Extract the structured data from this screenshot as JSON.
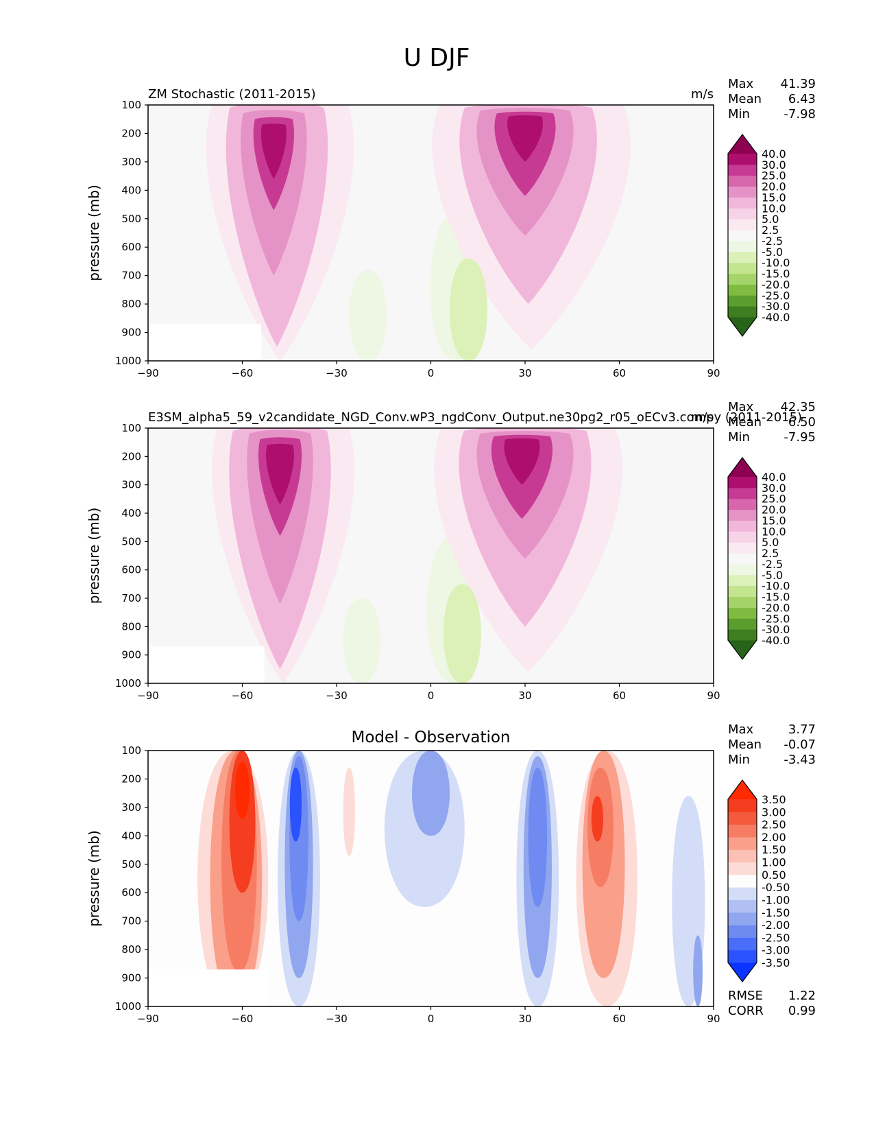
{
  "suptitle": "U DJF",
  "chart_data": [
    {
      "type": "contour",
      "title_left": "ZM Stochastic (2011-2015)",
      "title_right": "m/s",
      "title_center": "",
      "ylabel": "pressure (mb)",
      "xlabel": "",
      "xlim": [
        -90,
        90
      ],
      "ylim": [
        1000,
        100
      ],
      "xticks": [
        "−90",
        "−60",
        "−30",
        "0",
        "30",
        "60",
        "90"
      ],
      "yticks": [
        "100",
        "200",
        "300",
        "400",
        "500",
        "600",
        "700",
        "800",
        "900",
        "1000"
      ],
      "stats": [
        {
          "label": "Max",
          "value": "41.39"
        },
        {
          "label": "Mean",
          "value": "6.43"
        },
        {
          "label": "Min",
          "value": "-7.98"
        }
      ],
      "extra_stats": [],
      "colorbar": {
        "levels": [
          "-40.0",
          "-30.0",
          "-25.0",
          "-20.0",
          "-15.0",
          "-10.0",
          "-5.0",
          "-2.5",
          "2.5",
          "5.0",
          "10.0",
          "15.0",
          "20.0",
          "25.0",
          "30.0",
          "40.0"
        ],
        "colors": [
          "#276419",
          "#3e7d20",
          "#5a9e2f",
          "#7fbc41",
          "#a5d46b",
          "#c3e58e",
          "#dbf1b8",
          "#eef7e3",
          "#f7f7f7",
          "#fbe9f2",
          "#f7d3e7",
          "#f1b7da",
          "#e593c6",
          "#d866ad",
          "#c73a93",
          "#ae0f6f",
          "#8e0152"
        ]
      },
      "features": [
        {
          "shape": "jet",
          "level": 0.18,
          "lon": -48,
          "lat_width": 58,
          "top": 100,
          "bottom": 1000
        },
        {
          "shape": "jet",
          "level": 0.36,
          "lon": -49,
          "lat_width": 40,
          "top": 110,
          "bottom": 950
        },
        {
          "shape": "jet",
          "level": 0.52,
          "lon": -50,
          "lat_width": 26,
          "top": 130,
          "bottom": 700
        },
        {
          "shape": "jet",
          "level": 0.7,
          "lon": -50,
          "lat_width": 16,
          "top": 150,
          "bottom": 470
        },
        {
          "shape": "jet",
          "level": 0.86,
          "lon": -50,
          "lat_width": 10,
          "top": 170,
          "bottom": 360
        },
        {
          "shape": "jet",
          "level": 0.18,
          "lon": 32,
          "lat_width": 78,
          "top": 100,
          "bottom": 960
        },
        {
          "shape": "jet",
          "level": 0.36,
          "lon": 31,
          "lat_width": 54,
          "top": 110,
          "bottom": 800
        },
        {
          "shape": "jet",
          "level": 0.52,
          "lon": 30,
          "lat_width": 38,
          "top": 120,
          "bottom": 560
        },
        {
          "shape": "jet",
          "level": 0.7,
          "lon": 30,
          "lat_width": 24,
          "top": 130,
          "bottom": 420
        },
        {
          "shape": "jet",
          "level": 0.86,
          "lon": 30,
          "lat_width": 14,
          "top": 140,
          "bottom": 300
        },
        {
          "shape": "blob",
          "level": -0.14,
          "lon": -20,
          "lat_width": 16,
          "top": 680,
          "bottom": 1000
        },
        {
          "shape": "blob",
          "level": -0.14,
          "lon": 8,
          "lat_width": 22,
          "top": 480,
          "bottom": 1000
        },
        {
          "shape": "blob",
          "level": -0.28,
          "lon": 12,
          "lat_width": 16,
          "top": 640,
          "bottom": 1000
        }
      ],
      "mask": [
        {
          "lon0": -90,
          "lon1": -54,
          "p0": 870,
          "p1": 1000
        }
      ]
    },
    {
      "type": "contour",
      "title_left": "E3SM_alpha5_59_v2candidate_NGD_Conv.wP3_ngdConv_Output.ne30pg2_r05_oECv3.compy (2011-2015)",
      "title_right": "m/s",
      "title_center": "",
      "ylabel": "pressure (mb)",
      "xlabel": "",
      "xlim": [
        -90,
        90
      ],
      "ylim": [
        1000,
        100
      ],
      "xticks": [
        "−90",
        "−60",
        "−30",
        "0",
        "30",
        "60",
        "90"
      ],
      "yticks": [
        "100",
        "200",
        "300",
        "400",
        "500",
        "600",
        "700",
        "800",
        "900",
        "1000"
      ],
      "stats": [
        {
          "label": "Max",
          "value": "42.35"
        },
        {
          "label": "Mean",
          "value": "6.50"
        },
        {
          "label": "Min",
          "value": "-7.95"
        }
      ],
      "extra_stats": [],
      "colorbar": {
        "levels": [
          "-40.0",
          "-30.0",
          "-25.0",
          "-20.0",
          "-15.0",
          "-10.0",
          "-5.0",
          "-2.5",
          "2.5",
          "5.0",
          "10.0",
          "15.0",
          "20.0",
          "25.0",
          "30.0",
          "40.0"
        ],
        "colors": [
          "#276419",
          "#3e7d20",
          "#5a9e2f",
          "#7fbc41",
          "#a5d46b",
          "#c3e58e",
          "#dbf1b8",
          "#eef7e3",
          "#f7f7f7",
          "#fbe9f2",
          "#f7d3e7",
          "#f1b7da",
          "#e593c6",
          "#d866ad",
          "#c73a93",
          "#ae0f6f",
          "#8e0152"
        ]
      },
      "features": [
        {
          "shape": "jet",
          "level": 0.18,
          "lon": -47,
          "lat_width": 56,
          "top": 100,
          "bottom": 1000
        },
        {
          "shape": "jet",
          "level": 0.36,
          "lon": -48,
          "lat_width": 40,
          "top": 110,
          "bottom": 950
        },
        {
          "shape": "jet",
          "level": 0.52,
          "lon": -48,
          "lat_width": 26,
          "top": 120,
          "bottom": 720
        },
        {
          "shape": "jet",
          "level": 0.7,
          "lon": -48,
          "lat_width": 17,
          "top": 140,
          "bottom": 480
        },
        {
          "shape": "jet",
          "level": 0.86,
          "lon": -48,
          "lat_width": 11,
          "top": 160,
          "bottom": 370
        },
        {
          "shape": "jet",
          "level": 0.18,
          "lon": 31,
          "lat_width": 74,
          "top": 100,
          "bottom": 960
        },
        {
          "shape": "jet",
          "level": 0.36,
          "lon": 30,
          "lat_width": 52,
          "top": 110,
          "bottom": 800
        },
        {
          "shape": "jet",
          "level": 0.52,
          "lon": 30,
          "lat_width": 38,
          "top": 120,
          "bottom": 560
        },
        {
          "shape": "jet",
          "level": 0.7,
          "lon": 29,
          "lat_width": 24,
          "top": 130,
          "bottom": 420
        },
        {
          "shape": "jet",
          "level": 0.86,
          "lon": 29,
          "lat_width": 14,
          "top": 140,
          "bottom": 300
        },
        {
          "shape": "blob",
          "level": -0.14,
          "lon": -22,
          "lat_width": 16,
          "top": 700,
          "bottom": 1000
        },
        {
          "shape": "blob",
          "level": -0.14,
          "lon": 7,
          "lat_width": 22,
          "top": 480,
          "bottom": 1000
        },
        {
          "shape": "blob",
          "level": -0.28,
          "lon": 10,
          "lat_width": 16,
          "top": 650,
          "bottom": 1000
        }
      ],
      "mask": [
        {
          "lon0": -90,
          "lon1": -53,
          "p0": 870,
          "p1": 1000
        }
      ]
    },
    {
      "type": "contour",
      "title_left": "",
      "title_right": "",
      "title_center": "Model - Observation",
      "ylabel": "pressure (mb)",
      "xlabel": "",
      "xlim": [
        -90,
        90
      ],
      "ylim": [
        1000,
        100
      ],
      "xticks": [
        "−90",
        "−60",
        "−30",
        "0",
        "30",
        "60",
        "90"
      ],
      "yticks": [
        "100",
        "200",
        "300",
        "400",
        "500",
        "600",
        "700",
        "800",
        "900",
        "1000"
      ],
      "stats": [
        {
          "label": "Max",
          "value": "3.77"
        },
        {
          "label": "Mean",
          "value": "-0.07"
        },
        {
          "label": "Min",
          "value": "-3.43"
        }
      ],
      "extra_stats": [
        {
          "label": "RMSE",
          "value": "1.22"
        },
        {
          "label": "CORR",
          "value": "0.99"
        }
      ],
      "colorbar": {
        "levels": [
          "-3.50",
          "-3.00",
          "-2.50",
          "-2.00",
          "-1.50",
          "-1.00",
          "-0.50",
          "0.50",
          "1.00",
          "1.50",
          "2.00",
          "2.50",
          "3.00",
          "3.50"
        ],
        "colors": [
          "#0a34ff",
          "#2a52ff",
          "#4a6ef8",
          "#6f8bf2",
          "#90a6ee",
          "#b0c0f2",
          "#d4ddf8",
          "#fdfdfd",
          "#fddbd6",
          "#fcc0b4",
          "#fa9f8a",
          "#f67d63",
          "#f45a3e",
          "#f53d1f",
          "#ff2a00"
        ]
      },
      "features": [
        {
          "shape": "blob",
          "level": 0.2,
          "lon": -63,
          "lat_width": 30,
          "top": 100,
          "bottom": 1000
        },
        {
          "shape": "blob",
          "level": 0.4,
          "lon": -62,
          "lat_width": 22,
          "top": 100,
          "bottom": 1000
        },
        {
          "shape": "blob",
          "level": 0.6,
          "lon": -61,
          "lat_width": 15,
          "top": 100,
          "bottom": 880
        },
        {
          "shape": "blob",
          "level": 0.8,
          "lon": -60,
          "lat_width": 11,
          "top": 100,
          "bottom": 600
        },
        {
          "shape": "blob",
          "level": 0.95,
          "lon": -60,
          "lat_width": 6,
          "top": 140,
          "bottom": 340
        },
        {
          "shape": "blob",
          "level": -0.2,
          "lon": -42,
          "lat_width": 18,
          "top": 100,
          "bottom": 1000
        },
        {
          "shape": "blob",
          "level": -0.4,
          "lon": -42,
          "lat_width": 12,
          "top": 100,
          "bottom": 900
        },
        {
          "shape": "blob",
          "level": -0.6,
          "lon": -42,
          "lat_width": 8,
          "top": 120,
          "bottom": 700
        },
        {
          "shape": "blob",
          "level": -0.8,
          "lon": -43,
          "lat_width": 5,
          "top": 160,
          "bottom": 420
        },
        {
          "shape": "blob",
          "level": 0.2,
          "lon": -26,
          "lat_width": 5,
          "top": 160,
          "bottom": 470
        },
        {
          "shape": "blob",
          "level": -0.2,
          "lon": -2,
          "lat_width": 34,
          "top": 100,
          "bottom": 650
        },
        {
          "shape": "blob",
          "level": -0.4,
          "lon": 0,
          "lat_width": 16,
          "top": 100,
          "bottom": 400
        },
        {
          "shape": "blob",
          "level": -0.2,
          "lon": 34,
          "lat_width": 18,
          "top": 100,
          "bottom": 1000
        },
        {
          "shape": "blob",
          "level": -0.4,
          "lon": 34,
          "lat_width": 12,
          "top": 120,
          "bottom": 900
        },
        {
          "shape": "blob",
          "level": -0.6,
          "lon": 34,
          "lat_width": 8,
          "top": 160,
          "bottom": 650
        },
        {
          "shape": "blob",
          "level": 0.2,
          "lon": 56,
          "lat_width": 26,
          "top": 100,
          "bottom": 1000
        },
        {
          "shape": "blob",
          "level": 0.4,
          "lon": 55,
          "lat_width": 18,
          "top": 100,
          "bottom": 900
        },
        {
          "shape": "blob",
          "level": 0.6,
          "lon": 54,
          "lat_width": 11,
          "top": 160,
          "bottom": 580
        },
        {
          "shape": "blob",
          "level": 0.8,
          "lon": 53,
          "lat_width": 5,
          "top": 260,
          "bottom": 420
        },
        {
          "shape": "blob",
          "level": -0.2,
          "lon": 82,
          "lat_width": 14,
          "top": 260,
          "bottom": 1000
        },
        {
          "shape": "blob",
          "level": -0.4,
          "lon": 85,
          "lat_width": 4,
          "top": 750,
          "bottom": 1000
        }
      ],
      "mask": [
        {
          "lon0": -90,
          "lon1": -52,
          "p0": 870,
          "p1": 1000
        }
      ]
    }
  ]
}
